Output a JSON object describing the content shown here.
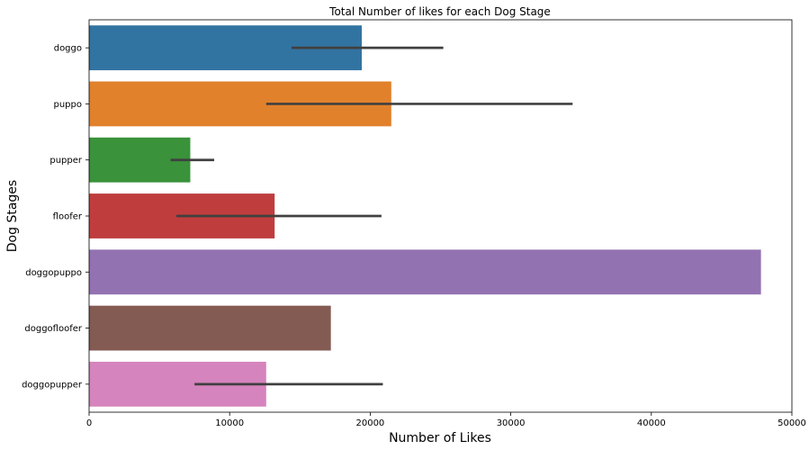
{
  "chart_data": {
    "type": "bar",
    "orientation": "horizontal",
    "title": "Total Number of likes for each Dog Stage",
    "xlabel": "Number of Likes",
    "ylabel": "Dog Stages",
    "xlim": [
      0,
      50000
    ],
    "xticks": [
      0,
      10000,
      20000,
      30000,
      40000,
      50000
    ],
    "xtick_labels": [
      "0",
      "10000",
      "20000",
      "30000",
      "40000",
      "50000"
    ],
    "grid": false,
    "legend": "none",
    "categories": [
      "doggo",
      "puppo",
      "pupper",
      "floofer",
      "doggopuppo",
      "doggofloofer",
      "doggopupper"
    ],
    "values": [
      19400,
      21500,
      7200,
      13200,
      47800,
      17200,
      12600
    ],
    "error_low": [
      14400,
      12600,
      5800,
      6200,
      null,
      null,
      7500
    ],
    "error_high": [
      25200,
      34400,
      8900,
      20800,
      null,
      null,
      20900
    ],
    "colors": [
      "#3274a1",
      "#e1812c",
      "#3a923a",
      "#c03d3e",
      "#9372b2",
      "#845b53",
      "#d684bd"
    ],
    "error_color": "#404040"
  }
}
